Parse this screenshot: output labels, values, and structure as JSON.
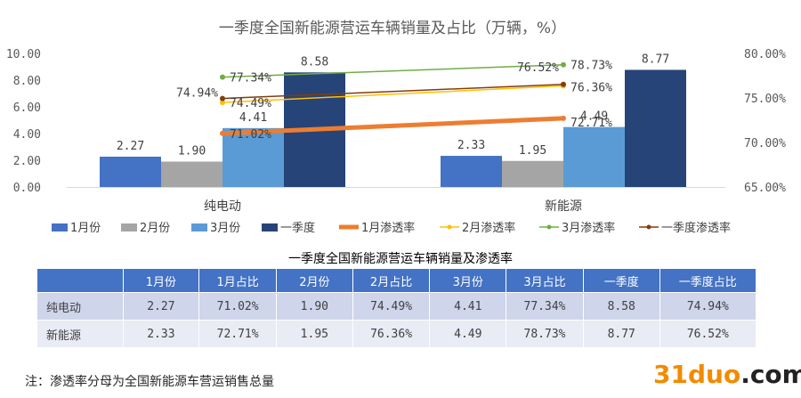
{
  "chart_data": {
    "type": "bar+line",
    "title": "一季度全国新能源营运车辆销量及占比（万辆，%）",
    "categories": [
      "纯电动",
      "新能源"
    ],
    "y_left": {
      "ylim": [
        0,
        10
      ],
      "ticks": [
        "0.00",
        "2.00",
        "4.00",
        "6.00",
        "8.00",
        "10.00"
      ]
    },
    "y_right": {
      "ylim": [
        65,
        80
      ],
      "ticks": [
        "65.00%",
        "70.00%",
        "75.00%",
        "80.00%"
      ]
    },
    "bar_series": [
      {
        "name": "1月份",
        "values": [
          2.27,
          2.33
        ],
        "labels": [
          "2.27",
          "2.33"
        ],
        "color": "#4472c4"
      },
      {
        "name": "2月份",
        "values": [
          1.9,
          1.95
        ],
        "labels": [
          "1.90",
          "1.95"
        ],
        "color": "#a5a5a5"
      },
      {
        "name": "3月份",
        "values": [
          4.41,
          4.49
        ],
        "labels": [
          "4.41",
          "4.49"
        ],
        "color": "#5b9bd5"
      },
      {
        "name": "一季度",
        "values": [
          8.58,
          8.77
        ],
        "labels": [
          "8.58",
          "8.77"
        ],
        "color": "#264478"
      }
    ],
    "line_series": [
      {
        "name": "1月渗透率",
        "values": [
          71.02,
          72.71
        ],
        "labels": [
          "71.02%",
          "72.71%"
        ],
        "color": "#ed7d31",
        "width": 5
      },
      {
        "name": "2月渗透率",
        "values": [
          74.49,
          76.36
        ],
        "labels": [
          "74.49%",
          "76.36%"
        ],
        "color": "#ffc000",
        "width": 1.5
      },
      {
        "name": "3月渗透率",
        "values": [
          77.34,
          78.73
        ],
        "labels": [
          "77.34%",
          "78.73%"
        ],
        "color": "#70ad47",
        "width": 1.5
      },
      {
        "name": "一季度渗透率",
        "values": [
          74.94,
          76.52
        ],
        "labels": [
          "74.94%",
          "76.52%"
        ],
        "color": "#843c0c",
        "width": 1.5
      }
    ],
    "grid": false,
    "legend": "bottom"
  },
  "table": {
    "title": "一季度全国新能源营运车辆销量及渗透率",
    "headers": [
      "",
      "1月份",
      "1月占比",
      "2月份",
      "2月占比",
      "3月份",
      "3月占比",
      "一季度",
      "一季度占比"
    ],
    "rows": [
      [
        "纯电动",
        "2.27",
        "71.02%",
        "1.90",
        "74.49%",
        "4.41",
        "77.34%",
        "8.58",
        "74.94%"
      ],
      [
        "新能源",
        "2.33",
        "72.71%",
        "1.95",
        "76.36%",
        "4.49",
        "78.73%",
        "8.77",
        "76.52%"
      ]
    ]
  },
  "footnote": "注：渗透率分母为全国新能源车营运销售总量",
  "watermark": {
    "text_main": "31duo",
    "text_suffix": ".com"
  }
}
